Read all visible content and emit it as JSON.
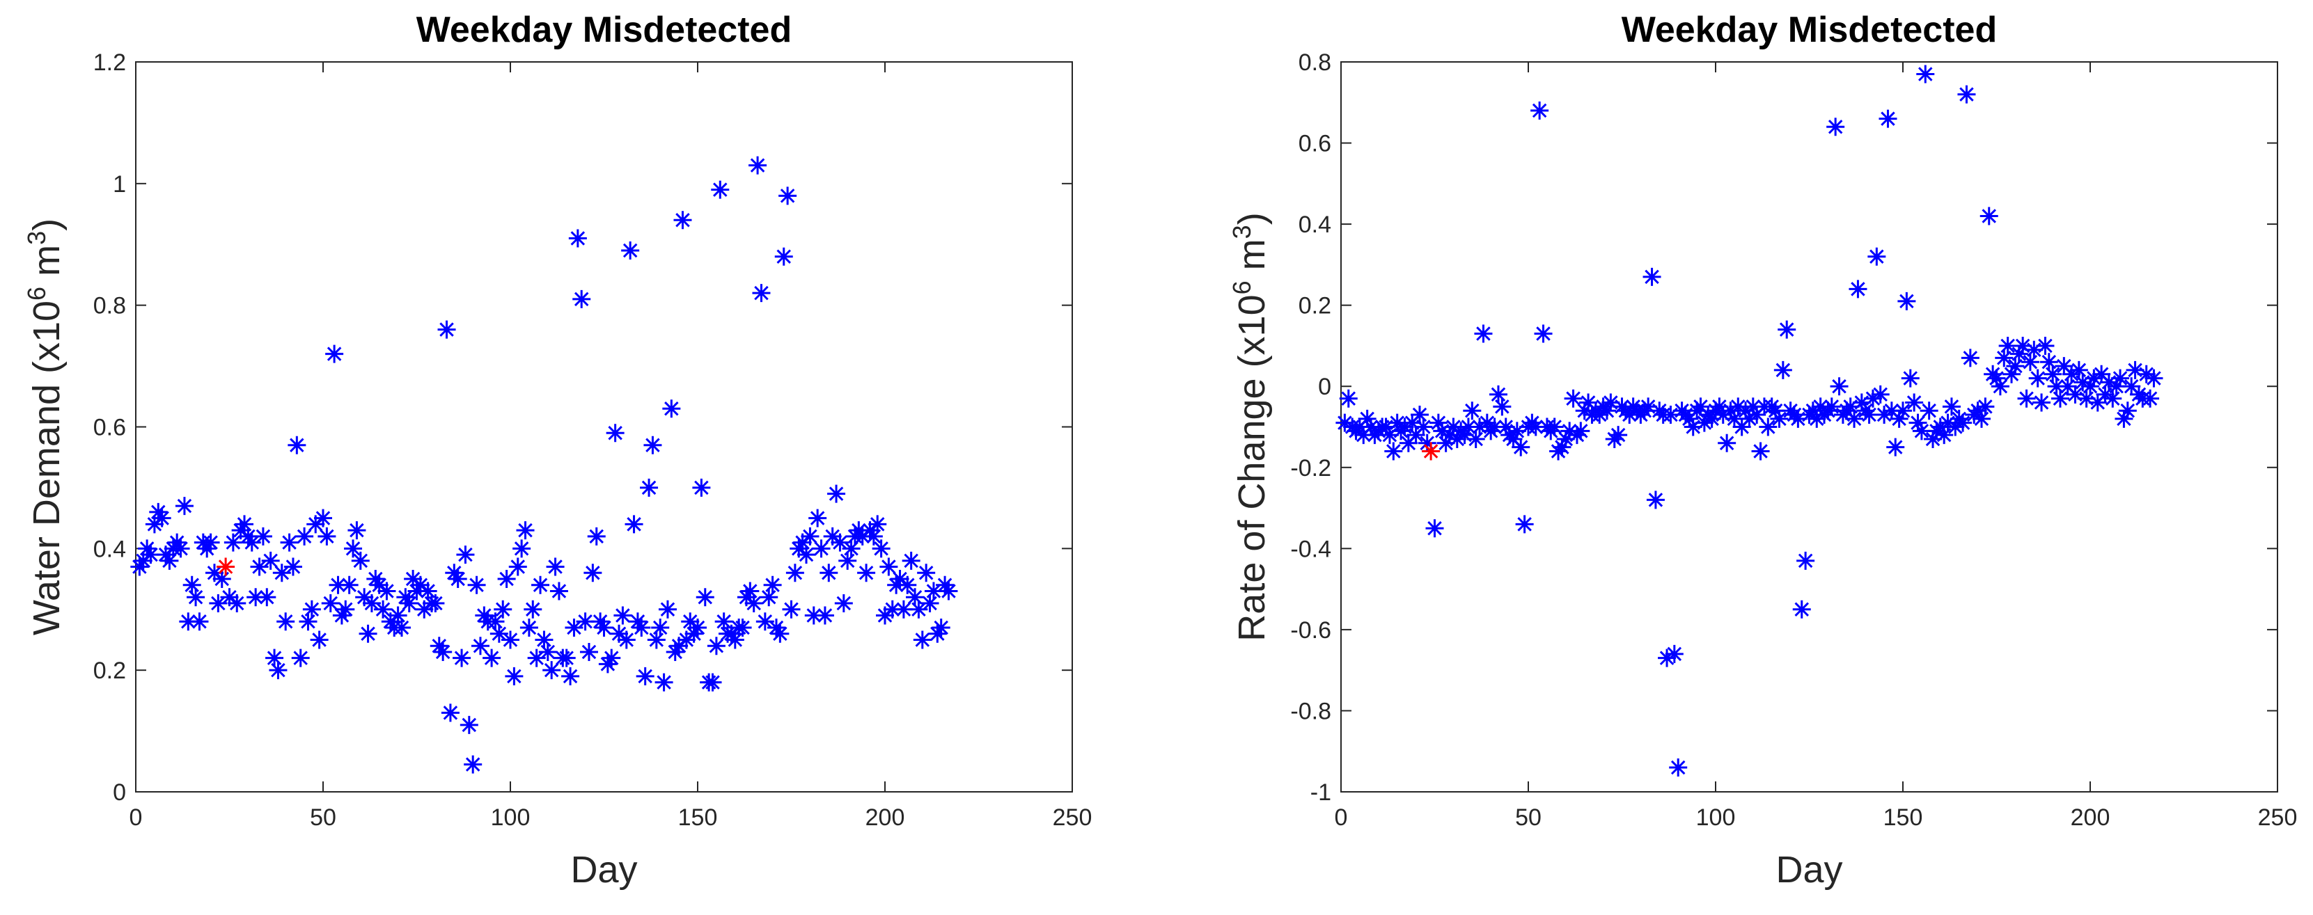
{
  "chart_data": [
    {
      "type": "scatter",
      "title": "Weekday Misdetected",
      "xlabel": "Day",
      "ylabel": [
        {
          "text": "Water Demand (x10"
        },
        {
          "text": "6",
          "sup": true
        },
        {
          "text": " m"
        },
        {
          "text": "3",
          "sup": true
        },
        {
          "text": ")"
        }
      ],
      "xlim": [
        0,
        250
      ],
      "ylim": [
        0,
        1.2
      ],
      "xticks": [
        0,
        50,
        100,
        150,
        200,
        250
      ],
      "yticks": [
        0,
        0.2,
        0.4,
        0.6,
        0.8,
        1,
        1.2
      ],
      "grid": false,
      "box": true,
      "series": [
        {
          "color": "#0000ff",
          "x": [
            1,
            2,
            3,
            4,
            5,
            6,
            7,
            8,
            9,
            10,
            11,
            12,
            13,
            14,
            15,
            16,
            17,
            18,
            19,
            20,
            21,
            22,
            23,
            25,
            26,
            27,
            28,
            29,
            30,
            31,
            32,
            33,
            34,
            35,
            36,
            37,
            38,
            39,
            40,
            41,
            42,
            43,
            44,
            45,
            46,
            47,
            48,
            49,
            50,
            51,
            52,
            53,
            54,
            55,
            56,
            57,
            58,
            59,
            60,
            61,
            62,
            63,
            64,
            65,
            66,
            67,
            68,
            69,
            70,
            71,
            72,
            73,
            74,
            75,
            76,
            77,
            78,
            79,
            80,
            81,
            82,
            83,
            84,
            85,
            86,
            87,
            88,
            89,
            90,
            91,
            92,
            93,
            94,
            95,
            96,
            97,
            98,
            99,
            100,
            101,
            102,
            103,
            104,
            105,
            106,
            107,
            108,
            109,
            110,
            111,
            112,
            113,
            114,
            115,
            116,
            117,
            118,
            119,
            120,
            121,
            122,
            123,
            124,
            125,
            126,
            127,
            128,
            129,
            130,
            131,
            132,
            133,
            134,
            135,
            136,
            137,
            138,
            139,
            140,
            141,
            142,
            143,
            144,
            145,
            146,
            147,
            148,
            149,
            150,
            151,
            152,
            153,
            154,
            155,
            156,
            157,
            158,
            159,
            160,
            161,
            162,
            163,
            164,
            165,
            166,
            167,
            168,
            169,
            170,
            171,
            172,
            173,
            174,
            175,
            176,
            177,
            178,
            179,
            180,
            181,
            182,
            183,
            184,
            185,
            186,
            187,
            188,
            189,
            190,
            191,
            192,
            193,
            194,
            195,
            196,
            197,
            198,
            199,
            200,
            201,
            202,
            203,
            204,
            205,
            206,
            207,
            208,
            209,
            210,
            211,
            212,
            213,
            214,
            215,
            216,
            217
          ],
          "values": [
            0.37,
            0.38,
            0.4,
            0.39,
            0.44,
            0.46,
            0.45,
            0.39,
            0.38,
            0.4,
            0.41,
            0.4,
            0.47,
            0.28,
            0.34,
            0.32,
            0.28,
            0.41,
            0.4,
            0.41,
            0.36,
            0.31,
            0.35,
            0.32,
            0.41,
            0.31,
            0.43,
            0.44,
            0.42,
            0.41,
            0.32,
            0.37,
            0.42,
            0.32,
            0.38,
            0.22,
            0.2,
            0.36,
            0.28,
            0.41,
            0.37,
            0.57,
            0.22,
            0.42,
            0.28,
            0.3,
            0.44,
            0.25,
            0.45,
            0.42,
            0.31,
            0.72,
            0.34,
            0.29,
            0.3,
            0.34,
            0.4,
            0.43,
            0.38,
            0.32,
            0.26,
            0.31,
            0.35,
            0.34,
            0.3,
            0.33,
            0.28,
            0.27,
            0.29,
            0.27,
            0.32,
            0.31,
            0.35,
            0.33,
            0.34,
            0.3,
            0.33,
            0.31,
            0.31,
            0.24,
            0.23,
            0.76,
            0.13,
            0.36,
            0.35,
            0.22,
            0.39,
            0.11,
            0.045,
            0.34,
            0.24,
            0.29,
            0.28,
            0.22,
            0.28,
            0.26,
            0.3,
            0.35,
            0.25,
            0.19,
            0.37,
            0.4,
            0.43,
            0.27,
            0.3,
            0.22,
            0.34,
            0.25,
            0.23,
            0.2,
            0.37,
            0.33,
            0.22,
            0.22,
            0.19,
            0.27,
            0.91,
            0.81,
            0.28,
            0.23,
            0.36,
            0.42,
            0.28,
            0.27,
            0.21,
            0.22,
            0.59,
            0.26,
            0.29,
            0.25,
            0.89,
            0.44,
            0.28,
            0.27,
            0.19,
            0.5,
            0.57,
            0.25,
            0.27,
            0.18,
            0.3,
            0.63,
            0.23,
            0.24,
            0.94,
            0.25,
            0.28,
            0.26,
            0.27,
            0.5,
            0.32,
            0.18,
            0.18,
            0.24,
            0.99,
            0.28,
            0.26,
            0.26,
            0.25,
            0.27,
            0.27,
            0.32,
            0.33,
            0.31,
            1.03,
            0.82,
            0.28,
            0.32,
            0.34,
            0.27,
            0.26,
            0.88,
            0.98,
            0.3,
            0.36,
            0.4,
            0.41,
            0.39,
            0.42,
            0.29,
            0.45,
            0.4,
            0.29,
            0.36,
            0.42,
            0.49,
            0.41,
            0.31,
            0.38,
            0.4,
            0.42,
            0.43,
            0.42,
            0.36,
            0.43,
            0.42,
            0.44,
            0.4,
            0.29,
            0.37,
            0.3,
            0.34,
            0.35,
            0.3,
            0.34,
            0.38,
            0.32,
            0.3,
            0.25,
            0.36,
            0.31,
            0.33,
            0.26,
            0.27,
            0.34,
            0.33
          ]
        },
        {
          "color": "#ff0000",
          "x": [
            24
          ],
          "values": [
            0.37
          ]
        }
      ]
    },
    {
      "type": "scatter",
      "title": "Weekday Misdetected",
      "xlabel": "Day",
      "ylabel": [
        {
          "text": "Rate of Change (x10"
        },
        {
          "text": "6",
          "sup": true
        },
        {
          "text": " m"
        },
        {
          "text": "3",
          "sup": true
        },
        {
          "text": ")"
        }
      ],
      "xlim": [
        0,
        250
      ],
      "ylim": [
        -1,
        0.8
      ],
      "xticks": [
        0,
        50,
        100,
        150,
        200,
        250
      ],
      "yticks": [
        -1,
        -0.8,
        -0.6,
        -0.4,
        -0.2,
        0,
        0.2,
        0.4,
        0.6,
        0.8
      ],
      "grid": false,
      "box": true,
      "series": [
        {
          "color": "#0000ff",
          "x": [
            1,
            2,
            3,
            4,
            5,
            6,
            7,
            8,
            9,
            10,
            11,
            12,
            13,
            14,
            15,
            16,
            17,
            18,
            19,
            20,
            21,
            22,
            23,
            25,
            26,
            27,
            28,
            29,
            30,
            31,
            32,
            33,
            34,
            35,
            36,
            37,
            38,
            39,
            40,
            41,
            42,
            43,
            44,
            45,
            46,
            47,
            48,
            49,
            50,
            51,
            52,
            53,
            54,
            55,
            56,
            57,
            58,
            59,
            60,
            61,
            62,
            63,
            64,
            65,
            66,
            67,
            68,
            69,
            70,
            71,
            72,
            73,
            74,
            75,
            76,
            77,
            78,
            79,
            80,
            81,
            82,
            83,
            84,
            85,
            86,
            87,
            88,
            89,
            90,
            91,
            92,
            93,
            94,
            95,
            96,
            97,
            98,
            99,
            100,
            101,
            102,
            103,
            104,
            105,
            106,
            107,
            108,
            109,
            110,
            111,
            112,
            113,
            114,
            115,
            116,
            117,
            118,
            119,
            120,
            121,
            122,
            123,
            124,
            125,
            126,
            127,
            128,
            129,
            130,
            131,
            132,
            133,
            134,
            135,
            136,
            137,
            138,
            139,
            140,
            141,
            142,
            143,
            144,
            145,
            146,
            147,
            148,
            149,
            150,
            151,
            152,
            153,
            154,
            155,
            156,
            157,
            158,
            159,
            160,
            161,
            162,
            163,
            164,
            165,
            166,
            167,
            168,
            169,
            170,
            171,
            172,
            173,
            174,
            175,
            176,
            177,
            178,
            179,
            180,
            181,
            182,
            183,
            184,
            185,
            186,
            187,
            188,
            189,
            190,
            191,
            192,
            193,
            194,
            195,
            196,
            197,
            198,
            199,
            200,
            201,
            202,
            203,
            204,
            205,
            206,
            207,
            208,
            209,
            210,
            211,
            212,
            213,
            214,
            215,
            216,
            217
          ],
          "values": [
            -0.09,
            -0.03,
            -0.1,
            -0.11,
            -0.1,
            -0.12,
            -0.08,
            -0.1,
            -0.12,
            -0.11,
            -0.1,
            -0.1,
            -0.12,
            -0.16,
            -0.09,
            -0.11,
            -0.1,
            -0.14,
            -0.09,
            -0.12,
            -0.07,
            -0.1,
            -0.14,
            -0.35,
            -0.09,
            -0.11,
            -0.14,
            -0.12,
            -0.1,
            -0.13,
            -0.11,
            -0.12,
            -0.1,
            -0.06,
            -0.13,
            -0.1,
            0.13,
            -0.09,
            -0.11,
            -0.1,
            -0.02,
            -0.05,
            -0.1,
            -0.12,
            -0.13,
            -0.11,
            -0.15,
            -0.34,
            -0.1,
            -0.09,
            -0.1,
            0.68,
            0.13,
            -0.1,
            -0.11,
            -0.1,
            -0.16,
            -0.15,
            -0.13,
            -0.11,
            -0.03,
            -0.12,
            -0.11,
            -0.06,
            -0.04,
            -0.07,
            -0.06,
            -0.07,
            -0.05,
            -0.06,
            -0.04,
            -0.13,
            -0.12,
            -0.05,
            -0.06,
            -0.07,
            -0.05,
            -0.06,
            -0.07,
            -0.06,
            -0.05,
            0.27,
            -0.28,
            -0.06,
            -0.07,
            -0.67,
            -0.07,
            -0.66,
            -0.94,
            -0.06,
            -0.07,
            -0.08,
            -0.1,
            -0.06,
            -0.05,
            -0.09,
            -0.07,
            -0.08,
            -0.06,
            -0.05,
            -0.07,
            -0.14,
            -0.06,
            -0.08,
            -0.05,
            -0.1,
            -0.06,
            -0.08,
            -0.05,
            -0.07,
            -0.16,
            -0.05,
            -0.1,
            -0.05,
            -0.06,
            -0.08,
            0.04,
            0.14,
            -0.06,
            -0.07,
            -0.08,
            -0.55,
            -0.43,
            -0.07,
            -0.06,
            -0.08,
            -0.05,
            -0.07,
            -0.06,
            -0.05,
            0.64,
            0,
            -0.07,
            -0.06,
            -0.05,
            -0.08,
            0.24,
            -0.04,
            -0.06,
            -0.07,
            -0.03,
            0.32,
            -0.02,
            -0.07,
            0.66,
            -0.06,
            -0.15,
            -0.08,
            -0.06,
            0.21,
            0.02,
            -0.04,
            -0.09,
            -0.11,
            0.77,
            -0.06,
            -0.13,
            -0.11,
            -0.1,
            -0.12,
            -0.09,
            -0.05,
            -0.1,
            -0.08,
            -0.09,
            0.72,
            0.07,
            -0.07,
            -0.06,
            -0.08,
            -0.05,
            0.42,
            0.03,
            0.02,
            0,
            0.07,
            0.1,
            0.03,
            0.05,
            0.08,
            0.1,
            -0.03,
            0.06,
            0.09,
            0.02,
            -0.04,
            0.1,
            0.06,
            0.03,
            0,
            -0.03,
            0.05,
            0,
            0.03,
            -0.02,
            0.04,
            0.01,
            -0.03,
            0,
            0.02,
            -0.04,
            0.03,
            -0.02,
            0.01,
            -0.03,
            0,
            0.02,
            -0.08,
            -0.06,
            0,
            0.04,
            -0.02,
            -0.03,
            0.03,
            -0.03,
            0.02
          ]
        },
        {
          "color": "#ff0000",
          "x": [
            24
          ],
          "values": [
            -0.16
          ]
        }
      ]
    }
  ]
}
